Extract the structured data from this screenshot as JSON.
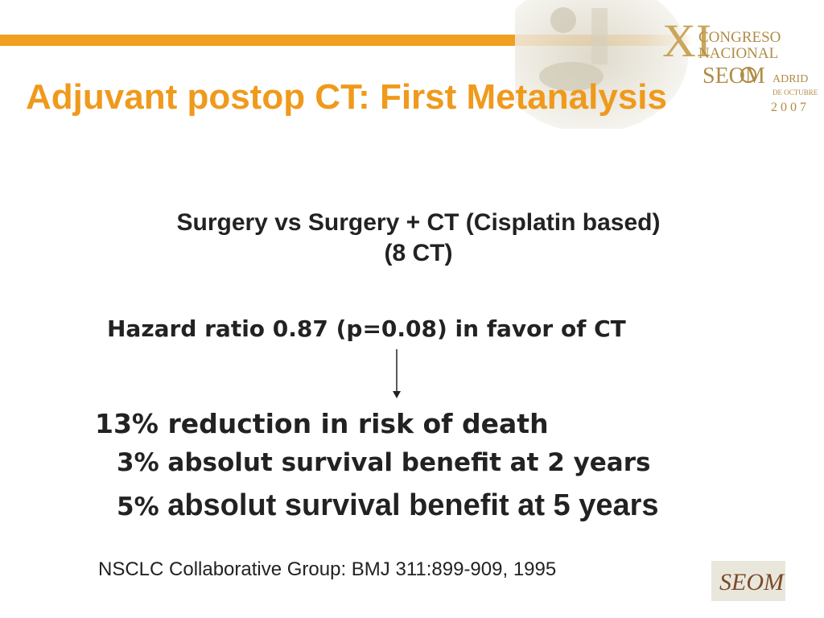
{
  "slide": {
    "title": "Adjuvant postop CT: First Metanalysis",
    "subtitle_line1": "Surgery vs Surgery + CT (Cisplatin based)",
    "subtitle_line2": "(8 CT)",
    "hazard": "Hazard ratio 0.87 (p=0.08) in favor of CT",
    "result1": "13% reduction in risk of death",
    "result2": "3% absolut survival benefit at 2 years",
    "result3_pct": "5%",
    "result3_rest": " absolut survival benefit at 5 years",
    "reference": "NSCLC Collaborative Group:  BMJ 311:899-909, 1995"
  },
  "logo": {
    "roman": "XI",
    "line1": "CONGRESO",
    "line2": "NACIONAL",
    "seom": "SEOM",
    "city": "ADRID",
    "date": "DE OCTUBRE",
    "year": "2007",
    "badge_text": "SEOM"
  },
  "colors": {
    "accent": "#ef9a1c",
    "bar": "#f0a020",
    "logo_gold": "#c9a65a",
    "text": "#222222"
  }
}
